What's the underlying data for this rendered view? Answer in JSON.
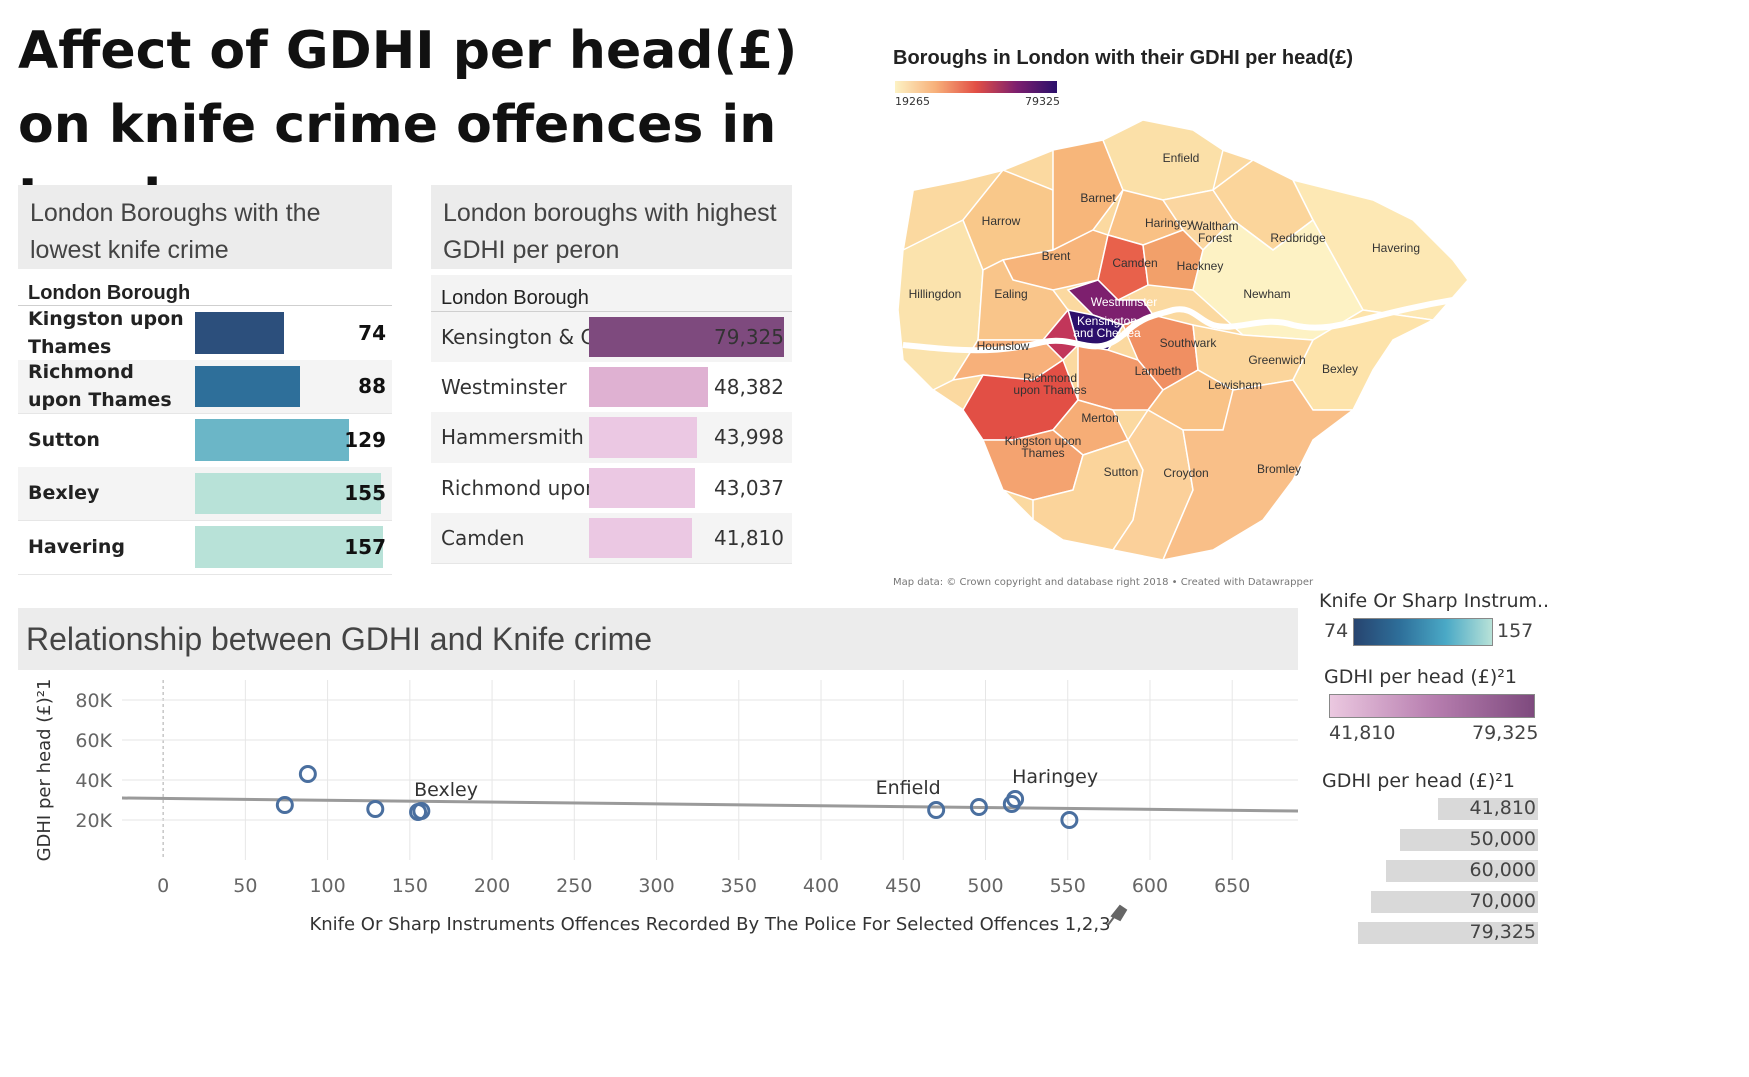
{
  "title": "Affect of GDHI per head(£) on knife crime offences in London",
  "lowest_panel": {
    "header": "London Boroughs with the lowest knife crime",
    "column_header": "London Borough"
  },
  "highest_panel": {
    "header": "London boroughs with highest GDHI per peron",
    "column_header": "London Borough"
  },
  "map_panel": {
    "title": "Boroughs in London with their GDHI per head(£)",
    "scale_min": "19265",
    "scale_max": "79325",
    "credit": "Map data: © Crown copyright and database right 2018 • Created with Datawrapper",
    "labels": [
      "Enfield",
      "Barnet",
      "Harrow",
      "Haringey",
      "Waltham Forest",
      "Redbridge",
      "Havering",
      "Brent",
      "Camden",
      "Hackney",
      "Hillingdon",
      "Ealing",
      "Westminster",
      "Newham",
      "Kensington and Chelsea",
      "Hounslow",
      "Southwark",
      "Greenwich",
      "Bexley",
      "Richmond upon Thames",
      "Lambeth",
      "Lewisham",
      "Merton",
      "Kingston upon Thames",
      "Sutton",
      "Croydon",
      "Bromley"
    ]
  },
  "scatter_panel": {
    "header": "Relationship between GDHI and Knife crime"
  },
  "legends": {
    "knife": {
      "title": "Knife Or Sharp Instrum..",
      "min": "74",
      "max": "157"
    },
    "gdhi_color": {
      "title": "GDHI  per  head  (£)²1",
      "min": "41,810",
      "max": "79,325"
    },
    "gdhi_size": {
      "title": "GDHI  per  head  (£)²1",
      "items": [
        "41,810",
        "50,000",
        "60,000",
        "70,000",
        "79,325"
      ]
    }
  },
  "colors": {
    "knife_scale": [
      "#2c4f7c",
      "#2e6f9a",
      "#6bb6c7",
      "#b8e2d8"
    ],
    "gdhi_scale": [
      "#ebc8e0",
      "#7e4a7e"
    ],
    "point_stroke": "#4a6f9f",
    "trend_line": "#9a9a9a",
    "map_scale": [
      "#fdf2c4",
      "#f7b07a",
      "#e24f45",
      "#7d1f6e",
      "#2b0f6b"
    ]
  },
  "chart_data": [
    {
      "type": "bar",
      "title": "London Boroughs with the lowest knife crime",
      "categories": [
        "Kingston upon Thames",
        "Richmond upon Thames",
        "Sutton",
        "Bexley",
        "Havering"
      ],
      "values": [
        74,
        88,
        129,
        155,
        157
      ],
      "value_labels": [
        "74",
        "88",
        "129",
        "155",
        "157"
      ]
    },
    {
      "type": "bar",
      "title": "London boroughs with highest GDHI per peron",
      "categories": [
        "Kensington & C..",
        "Westminster",
        "Hammersmith ..",
        "Richmond upon..",
        "Camden"
      ],
      "values": [
        79325,
        48382,
        43998,
        43037,
        41810
      ],
      "value_labels": [
        "79,325",
        "48,382",
        "43,998",
        "43,037",
        "41,810"
      ]
    },
    {
      "type": "scatter",
      "title": "Relationship between GDHI and Knife crime",
      "xlabel": "Knife Or Sharp Instruments Offences Recorded By The Police For Selected Offences 1,2,3",
      "ylabel": "GDHI  per  head  (£)²1",
      "xlim": [
        -25,
        690
      ],
      "ylim": [
        0,
        90000
      ],
      "x_ticks": [
        "0",
        "50",
        "100",
        "150",
        "200",
        "250",
        "300",
        "350",
        "400",
        "450",
        "500",
        "550",
        "600",
        "650"
      ],
      "x_tick_values": [
        0,
        50,
        100,
        150,
        200,
        250,
        300,
        350,
        400,
        450,
        500,
        550,
        600,
        650
      ],
      "y_ticks": [
        "20K",
        "40K",
        "60K",
        "80K"
      ],
      "y_tick_values": [
        20000,
        40000,
        60000,
        80000
      ],
      "points": [
        {
          "x": 74,
          "y": 27500
        },
        {
          "x": 88,
          "y": 43000
        },
        {
          "x": 129,
          "y": 25500
        },
        {
          "x": 155,
          "y": 24000
        },
        {
          "x": 157,
          "y": 24500
        },
        {
          "x": 470,
          "y": 25000
        },
        {
          "x": 496,
          "y": 26500
        },
        {
          "x": 516,
          "y": 28000
        },
        {
          "x": 518,
          "y": 30500
        },
        {
          "x": 551,
          "y": 20000
        }
      ],
      "annotations": [
        {
          "text": "Bexley",
          "x": 155,
          "y": 24000
        },
        {
          "text": "Enfield",
          "x": 470,
          "y": 25000
        },
        {
          "text": "Haringey",
          "x": 518,
          "y": 30500
        }
      ],
      "trend_line": {
        "x": [
          -25,
          690
        ],
        "y": [
          31000,
          24500
        ]
      },
      "grid": true
    }
  ]
}
